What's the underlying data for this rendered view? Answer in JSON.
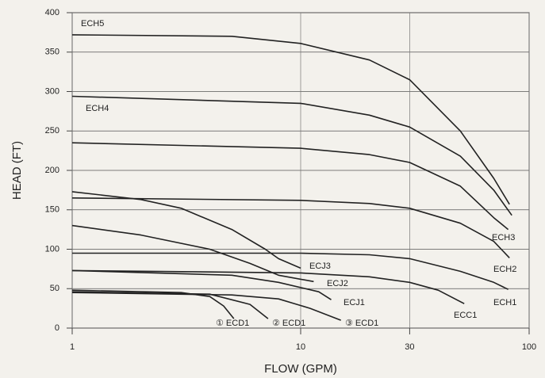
{
  "chart_data": {
    "type": "line",
    "log_x": true,
    "grid": true,
    "xlabel": "FLOW (GPM)",
    "ylabel": "HEAD (FT)",
    "xlim": [
      1,
      100
    ],
    "ylim": [
      0,
      400
    ],
    "xticks": [
      1,
      10,
      30,
      100
    ],
    "yticks": [
      0,
      50,
      100,
      150,
      200,
      250,
      300,
      350,
      400
    ],
    "series": [
      {
        "name": "ECH5",
        "color": "#222222",
        "x": [
          1,
          5,
          10,
          20,
          30,
          50,
          70,
          82
        ],
        "values": [
          372,
          370,
          361,
          340,
          315,
          250,
          190,
          157
        ]
      },
      {
        "name": "ECH4",
        "color": "#222222",
        "x": [
          1,
          10,
          20,
          30,
          50,
          70,
          84
        ],
        "values": [
          294,
          285,
          270,
          255,
          218,
          175,
          143
        ]
      },
      {
        "name": "ECH3",
        "color": "#222222",
        "x": [
          1,
          10,
          20,
          30,
          50,
          70,
          81
        ],
        "values": [
          235,
          228,
          220,
          210,
          180,
          140,
          125
        ]
      },
      {
        "name": "ECH2",
        "color": "#222222",
        "x": [
          1,
          10,
          20,
          30,
          50,
          70,
          82
        ],
        "values": [
          165,
          162,
          158,
          152,
          133,
          110,
          89
        ]
      },
      {
        "name": "ECH1",
        "color": "#222222",
        "x": [
          1,
          10,
          20,
          30,
          50,
          70,
          81
        ],
        "values": [
          95,
          95,
          93,
          88,
          72,
          58,
          49
        ]
      },
      {
        "name": "ECC1",
        "color": "#222222",
        "x": [
          1,
          10,
          20,
          30,
          40,
          52
        ],
        "values": [
          73,
          70,
          65,
          58,
          48,
          31
        ]
      },
      {
        "name": "ECJ3",
        "color": "#222222",
        "x": [
          1,
          2,
          3,
          5,
          7,
          8,
          10
        ],
        "values": [
          173,
          163,
          152,
          125,
          100,
          88,
          76
        ]
      },
      {
        "name": "ECJ2",
        "color": "#222222",
        "x": [
          1,
          2,
          4,
          6,
          8,
          11.4
        ],
        "values": [
          130,
          118,
          100,
          82,
          67,
          59
        ]
      },
      {
        "name": "ECJ1",
        "color": "#222222",
        "x": [
          1,
          5,
          8,
          12,
          13.6
        ],
        "values": [
          73,
          67,
          58,
          46,
          36
        ]
      },
      {
        "name": "① ECD1",
        "color": "#222222",
        "x": [
          1,
          3,
          4,
          4.6,
          5.1
        ],
        "values": [
          48,
          45,
          40,
          28,
          12
        ]
      },
      {
        "name": "② ECD1",
        "color": "#222222",
        "x": [
          1,
          4,
          6,
          7.2
        ],
        "values": [
          46,
          43,
          30,
          12
        ]
      },
      {
        "name": "③ ECD1",
        "color": "#222222",
        "x": [
          1,
          5,
          8,
          11,
          15
        ],
        "values": [
          45,
          42,
          37,
          25,
          10
        ]
      }
    ]
  }
}
